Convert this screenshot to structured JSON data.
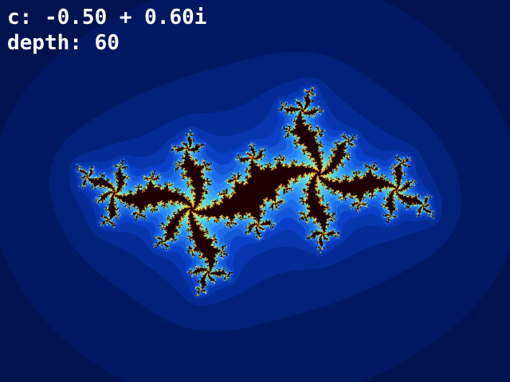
{
  "hud": {
    "param_label": "c: -0.50 + 0.60i",
    "depth_label": "depth: 60"
  },
  "fractal": {
    "type": "julia",
    "c_real": -0.5,
    "c_imag": 0.6,
    "max_iterations": 60,
    "interior_color": "#1e0000",
    "background_color": "#000a2a",
    "palette": [
      "#000a2a",
      "#001a6a",
      "#0a40c8",
      "#2a8cff",
      "#60e0d8",
      "#ffe040",
      "#ff8020"
    ]
  }
}
